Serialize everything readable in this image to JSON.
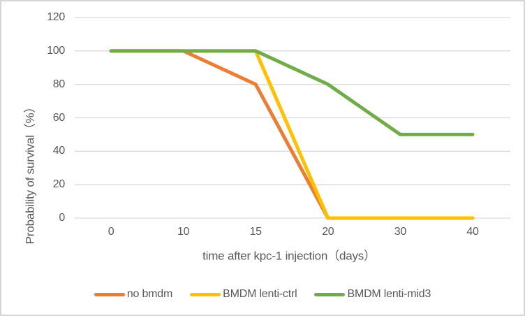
{
  "chart_data": {
    "type": "line",
    "title": "",
    "x_axis_title": "time after kpc-1 injection（days）",
    "y_axis_title": "Probability of survival（%）",
    "categories": [
      "0",
      "10",
      "15",
      "20",
      "30",
      "40"
    ],
    "y_ticks": [
      0,
      20,
      40,
      60,
      80,
      100,
      120
    ],
    "ylim": [
      0,
      120
    ],
    "grid": "horizontal",
    "legend_position": "bottom",
    "series": [
      {
        "name": "no bmdm",
        "color": "#ED7D31",
        "values": [
          100,
          100,
          80,
          0,
          0,
          0
        ]
      },
      {
        "name": "BMDM lenti-ctrl",
        "color": "#FFC000",
        "values": [
          100,
          100,
          100,
          0,
          0,
          0
        ]
      },
      {
        "name": "BMDM lenti-mid3",
        "color": "#70AD47",
        "values": [
          100,
          100,
          100,
          80,
          50,
          50
        ]
      }
    ]
  },
  "colors": {
    "gridline": "#D9D9D9",
    "text": "#595959",
    "border": "#D5D5D5",
    "background": "#FFFFFF"
  }
}
